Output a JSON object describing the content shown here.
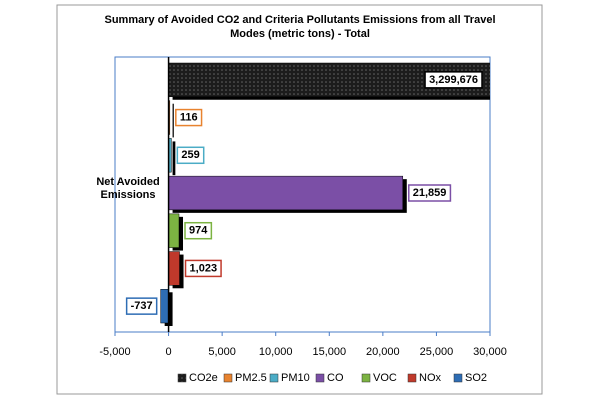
{
  "chart_data": {
    "type": "bar",
    "orientation": "horizontal",
    "title": "Summary of Avoided CO2 and Criteria Pollutants Emissions from all Travel Modes (metric tons) - Total",
    "categories": [
      "Net Avoided Emissions"
    ],
    "series": [
      {
        "name": "CO2e",
        "color": "#1c1c1c",
        "values": [
          3299676
        ],
        "value_labels": [
          "3,299,676"
        ]
      },
      {
        "name": "PM2.5",
        "color": "#e8832f",
        "values": [
          116
        ]
      },
      {
        "name": "PM10",
        "color": "#4bacc6",
        "values": [
          259
        ]
      },
      {
        "name": "CO",
        "color": "#7b4fa6",
        "values": [
          21859
        ],
        "value_labels": [
          "21,859"
        ]
      },
      {
        "name": "VOC",
        "color": "#7cb342",
        "values": [
          974
        ]
      },
      {
        "name": "NOx",
        "color": "#c0392b",
        "values": [
          1023
        ],
        "value_labels": [
          "1,023"
        ]
      },
      {
        "name": "SO2",
        "color": "#2e6db4",
        "values": [
          -737
        ]
      }
    ],
    "xlim": [
      -5000,
      30000
    ],
    "xticks": [
      {
        "value": -5000,
        "label": "-5,000"
      },
      0,
      {
        "value": 5000,
        "label": "5,000"
      },
      {
        "value": 10000,
        "label": "10,000"
      },
      {
        "value": 15000,
        "label": "15,000"
      },
      {
        "value": 20000,
        "label": "20,000"
      },
      {
        "value": 25000,
        "label": "25,000"
      },
      {
        "value": 30000,
        "label": "30,000"
      }
    ],
    "legend": "bottom"
  }
}
